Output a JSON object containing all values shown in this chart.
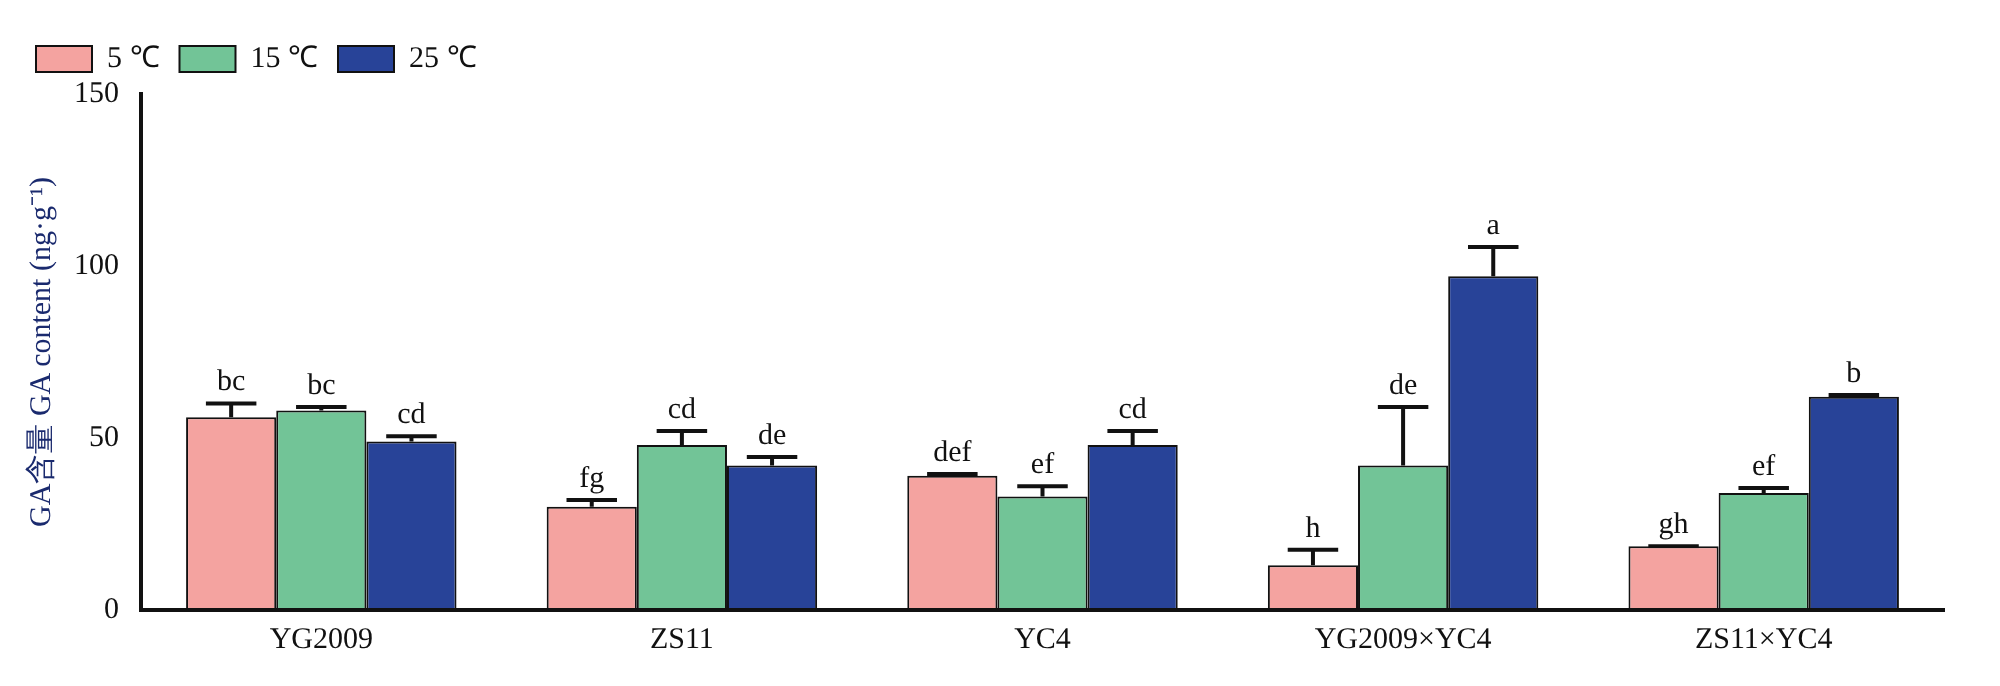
{
  "chart_data": {
    "type": "bar",
    "ylabel": "GA含量 GA content (ng·g⁻¹)",
    "categories": [
      "YG2009",
      "ZS11",
      "YC4",
      "YG2009×YC4",
      "ZS11×YC4"
    ],
    "series": [
      {
        "name": "5 ℃",
        "color": "#f4a3a0",
        "values": [
          56,
          30,
          39,
          13,
          18.5
        ],
        "errors": [
          4,
          2,
          0.5,
          4.5,
          0
        ],
        "value_labels": [
          "bc",
          "fg",
          "def",
          "h",
          "gh"
        ]
      },
      {
        "name": "15 ℃",
        "color": "#72c497",
        "values": [
          58,
          48,
          33,
          42,
          34
        ],
        "errors": [
          1,
          4,
          3,
          17,
          1.5
        ],
        "value_labels": [
          "bc",
          "cd",
          "ef",
          "de",
          "ef"
        ]
      },
      {
        "name": "25 ℃",
        "color": "#284398",
        "values": [
          49,
          42,
          48,
          97,
          62
        ],
        "errors": [
          1.5,
          2.5,
          4,
          8.5,
          0.5
        ],
        "value_labels": [
          "cd",
          "de",
          "cd",
          "a",
          "b"
        ]
      }
    ],
    "ylim": [
      0,
      150
    ],
    "yticks": [
      0,
      50,
      100,
      150
    ],
    "grid": false,
    "legend": "top left"
  }
}
